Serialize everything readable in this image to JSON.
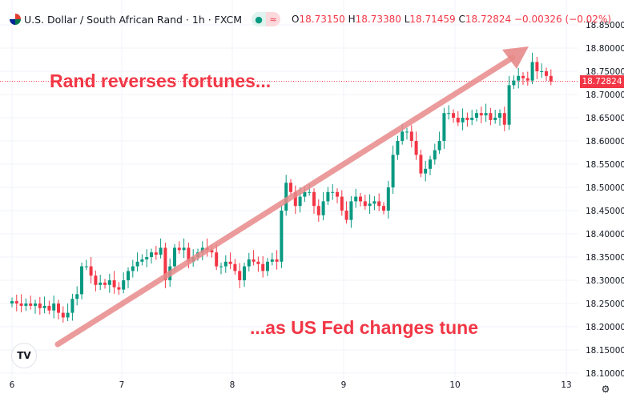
{
  "header": {
    "title": "U.S. Dollar / South African Rand · 1h · FXCM",
    "open_label": "O",
    "open": "18.73150",
    "high_label": "H",
    "high": "18.73380",
    "low_label": "L",
    "low": "18.71459",
    "close_label": "C",
    "close": "18.72824",
    "change": "−0.00326 (−0.02%)",
    "pill_market": "●",
    "pill_status": "≈"
  },
  "annotations": {
    "top": "Rand reverses fortunes...",
    "bottom": "...as US Fed changes tune"
  },
  "price_label": "18.72824",
  "logo": "TV",
  "settings_icon": "⚙",
  "colors": {
    "up": "#089981",
    "down": "#f23645",
    "arrow": "#e88a8a",
    "grid": "#f0f3fa"
  },
  "chart_data": {
    "type": "candlestick",
    "title": "U.S. Dollar / South African Rand · 1h · FXCM",
    "x_tick_labels": [
      "6",
      "7",
      "8",
      "9",
      "10",
      "13"
    ],
    "y_tick_labels": [
      "18.85000",
      "18.80000",
      "18.75000",
      "18.70000",
      "18.65000",
      "18.60000",
      "18.55000",
      "18.50000",
      "18.45000",
      "18.40000",
      "18.35000",
      "18.30000",
      "18.25000",
      "18.20000",
      "18.15000",
      "18.10000"
    ],
    "ylim": [
      18.1,
      18.85
    ],
    "grid": true,
    "last_price": 18.72824,
    "first_open": 18.25,
    "close": [
      18.255,
      18.25,
      18.245,
      18.25,
      18.245,
      18.25,
      18.24,
      18.245,
      18.235,
      18.25,
      18.23,
      18.22,
      18.23,
      18.26,
      18.27,
      18.33,
      18.33,
      18.31,
      18.29,
      18.295,
      18.29,
      18.3,
      18.285,
      18.28,
      18.3,
      18.32,
      18.33,
      18.34,
      18.345,
      18.35,
      18.36,
      18.355,
      18.37,
      18.3,
      18.33,
      18.37,
      18.365,
      18.37,
      18.34,
      18.35,
      18.36,
      18.37,
      18.365,
      18.36,
      18.33,
      18.33,
      18.34,
      18.335,
      18.32,
      18.3,
      18.33,
      18.345,
      18.34,
      18.335,
      18.32,
      18.34,
      18.345,
      18.34,
      18.45,
      18.51,
      18.49,
      18.46,
      18.48,
      18.49,
      18.49,
      18.46,
      18.44,
      18.47,
      18.49,
      18.49,
      18.48,
      18.45,
      18.43,
      18.47,
      18.48,
      18.47,
      18.46,
      18.465,
      18.47,
      18.46,
      18.45,
      18.5,
      18.57,
      18.6,
      18.62,
      18.62,
      18.6,
      18.57,
      18.53,
      18.54,
      18.56,
      18.58,
      18.6,
      18.66,
      18.66,
      18.65,
      18.64,
      18.65,
      18.645,
      18.65,
      18.66,
      18.655,
      18.66,
      18.645,
      18.65,
      18.66,
      18.635,
      18.72,
      18.73,
      18.74,
      18.735,
      18.73,
      18.77,
      18.75,
      18.75,
      18.74,
      18.728
    ]
  }
}
